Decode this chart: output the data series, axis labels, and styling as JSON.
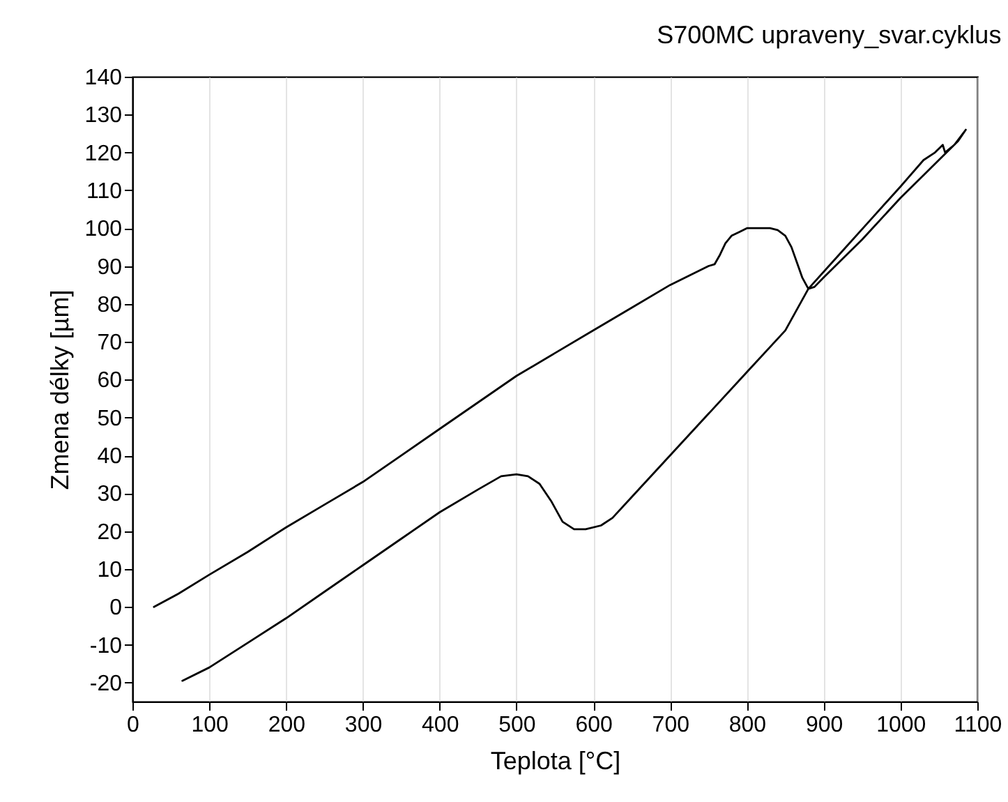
{
  "chart_data": {
    "type": "line",
    "title": "S700MC upraveny_svar.cyklus",
    "xlabel": "Teplota [°C]",
    "ylabel": "Zmena délky [µm]",
    "xlim": [
      0,
      1100
    ],
    "xticks": [
      0,
      100,
      200,
      300,
      400,
      500,
      600,
      700,
      800,
      900,
      1000,
      1100
    ],
    "ylim": [
      -25,
      140
    ],
    "yticks": [
      -20,
      -10,
      0,
      10,
      20,
      30,
      40,
      50,
      60,
      70,
      80,
      90,
      100,
      110,
      120,
      130,
      140
    ],
    "grid": "x",
    "marker": "none",
    "line_style": "solid",
    "series": [
      {
        "color": "#000000",
        "x": [
          65,
          100,
          150,
          200,
          250,
          300,
          350,
          400,
          450,
          480,
          500,
          515,
          530,
          545,
          560,
          575,
          590,
          610,
          625,
          650,
          700,
          750,
          800,
          850,
          880,
          920,
          960,
          1000,
          1030,
          1045,
          1055,
          1058,
          1070,
          1085,
          1075,
          1060,
          1040,
          1000,
          950,
          900,
          888,
          880,
          872,
          865,
          858,
          850,
          840,
          830,
          815,
          800,
          790,
          780,
          772,
          765,
          758,
          750,
          700,
          650,
          600,
          550,
          500,
          450,
          400,
          350,
          300,
          250,
          200,
          150,
          100,
          60,
          28
        ],
        "values": [
          -19.5,
          -16,
          -9.5,
          -3,
          4,
          11,
          18,
          25,
          31,
          34.5,
          35,
          34.5,
          32.5,
          28,
          22.5,
          20.5,
          20.5,
          21.5,
          23.5,
          29,
          40,
          51,
          62,
          73,
          84,
          93,
          102,
          111,
          118,
          120,
          122,
          120,
          122,
          126,
          123,
          120,
          116,
          108,
          97,
          87,
          84.5,
          84,
          87,
          91,
          95,
          98,
          99.5,
          100,
          100,
          100,
          99,
          98,
          96,
          93,
          90.5,
          90,
          85,
          79,
          73,
          67,
          61,
          54,
          47,
          40,
          33,
          27,
          21,
          14.5,
          8.5,
          3.5,
          0
        ]
      }
    ]
  }
}
